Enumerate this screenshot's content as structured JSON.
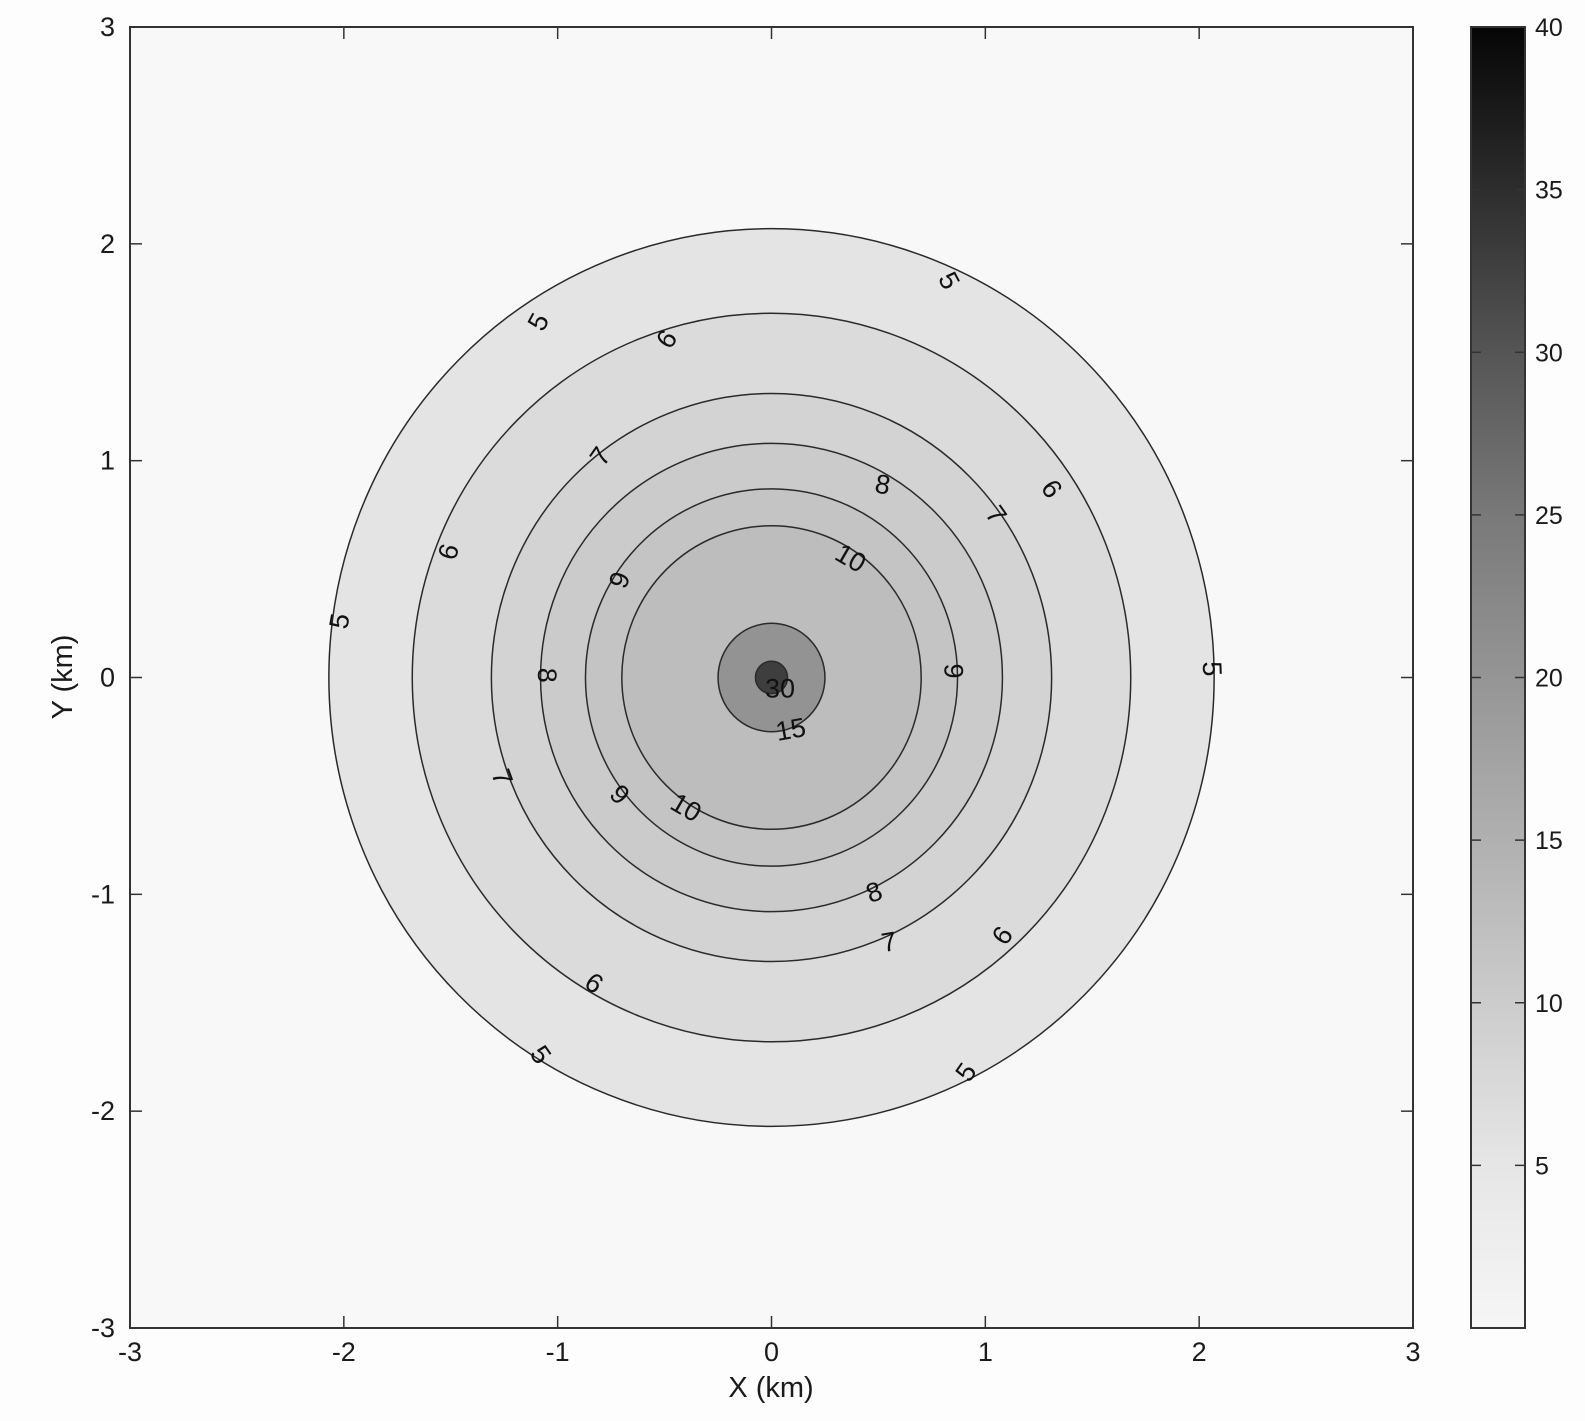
{
  "chart_data": {
    "type": "contour",
    "xlabel": "X (km)",
    "ylabel": "Y (km)",
    "xlim": [
      -3,
      3
    ],
    "ylim": [
      -3,
      3
    ],
    "xticks": [
      "-3",
      "-2",
      "-1",
      "0",
      "1",
      "2",
      "3"
    ],
    "yticks": [
      "-3",
      "-2",
      "-1",
      "0",
      "1",
      "2",
      "3"
    ],
    "grid": false,
    "colorbar": {
      "range": [
        0,
        40
      ],
      "ticks": [
        "5",
        "10",
        "15",
        "20",
        "25",
        "30",
        "35",
        "40"
      ],
      "colormap": "gray-reversed",
      "low_color": "#f6f6f6",
      "high_color": "#000000"
    },
    "levels": [
      {
        "value": 5,
        "rx": 2.07,
        "ry": 2.07,
        "color": "#e4e4e4",
        "labels": [
          [
            "5",
            -1.09,
            1.64,
            -62
          ],
          [
            "5",
            0.83,
            1.83,
            62
          ],
          [
            "5",
            -2.02,
            0.26,
            -80
          ],
          [
            "5",
            2.06,
            0.04,
            88
          ],
          [
            "5",
            -1.08,
            -1.74,
            55
          ],
          [
            "5",
            0.91,
            -1.82,
            -55
          ]
        ]
      },
      {
        "value": 6,
        "rx": 1.68,
        "ry": 1.68,
        "color": "#dbdbdb",
        "labels": [
          [
            "6",
            -0.49,
            1.56,
            -55
          ],
          [
            "6",
            1.31,
            0.87,
            55
          ],
          [
            "6",
            -1.51,
            0.58,
            -75
          ],
          [
            "6",
            -0.83,
            -1.41,
            35
          ],
          [
            "6",
            1.08,
            -1.19,
            -55
          ]
        ]
      },
      {
        "value": 7,
        "rx": 1.31,
        "ry": 1.31,
        "color": "#d3d3d3",
        "labels": [
          [
            "7",
            -0.8,
            1.02,
            -55
          ],
          [
            "7",
            1.05,
            0.75,
            55
          ],
          [
            "7",
            -1.26,
            -0.46,
            70
          ],
          [
            "7",
            0.55,
            -1.22,
            -10
          ]
        ]
      },
      {
        "value": 8,
        "rx": 1.08,
        "ry": 1.08,
        "color": "#cbcbcb",
        "labels": [
          [
            "8",
            0.52,
            0.89,
            10
          ],
          [
            "8",
            -1.05,
            0.01,
            90
          ],
          [
            "8",
            0.48,
            -0.99,
            -20
          ]
        ]
      },
      {
        "value": 9,
        "rx": 0.87,
        "ry": 0.87,
        "color": "#c4c4c4",
        "labels": [
          [
            "9",
            -0.71,
            0.45,
            -70
          ],
          [
            "9",
            0.85,
            0.03,
            90
          ],
          [
            "9",
            -0.71,
            -0.54,
            45
          ]
        ]
      },
      {
        "value": 10,
        "rx": 0.7,
        "ry": 0.7,
        "color": "#bdbdbd",
        "labels": [
          [
            "10",
            0.37,
            0.55,
            30
          ],
          [
            "10",
            -0.4,
            -0.6,
            30
          ]
        ]
      },
      {
        "value": 15,
        "rx": 0.25,
        "ry": 0.25,
        "color": "#939393",
        "labels": [
          [
            "15",
            0.09,
            -0.24,
            -10
          ]
        ]
      },
      {
        "value": 30,
        "rx": 0.075,
        "ry": 0.075,
        "color": "#3e3e3e",
        "labels": [
          [
            "30",
            0.04,
            -0.05,
            0
          ]
        ]
      }
    ]
  }
}
